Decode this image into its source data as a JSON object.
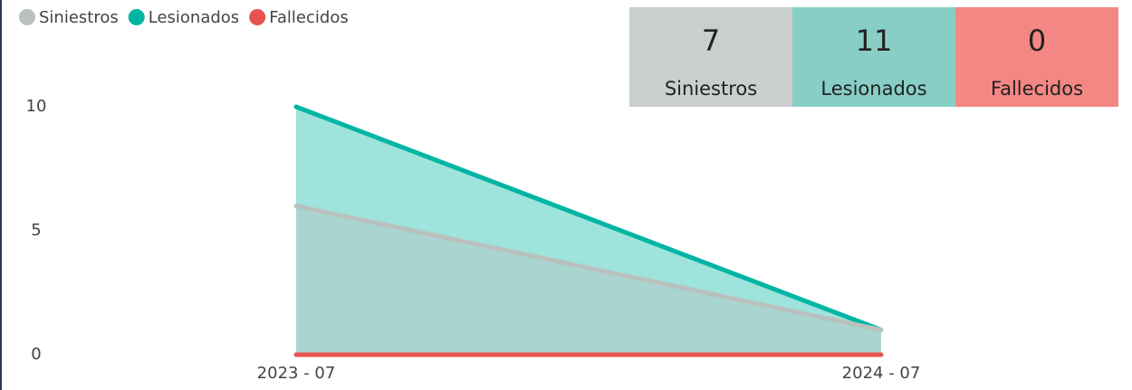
{
  "chart_data": {
    "type": "area",
    "categories": [
      "2023 - 07",
      "2024 - 07"
    ],
    "series": [
      {
        "name": "Siniestros",
        "color": "#b9c1be",
        "values": [
          6,
          1
        ]
      },
      {
        "name": "Lesionados",
        "color": "#00b5a4",
        "values": [
          10,
          1
        ]
      },
      {
        "name": "Fallecidos",
        "color": "#e8534f",
        "values": [
          0,
          0
        ]
      }
    ],
    "ylim": [
      0,
      10
    ],
    "yticks": [
      0,
      5,
      10
    ],
    "grid": false,
    "legend": "top-left"
  },
  "kpis": [
    {
      "value": 7,
      "label": "Siniestros",
      "color": "#c9cfcd"
    },
    {
      "value": 11,
      "label": "Lesionados",
      "color": "#88cec7"
    },
    {
      "value": 0,
      "label": "Fallecidos",
      "color": "#f38784"
    }
  ]
}
